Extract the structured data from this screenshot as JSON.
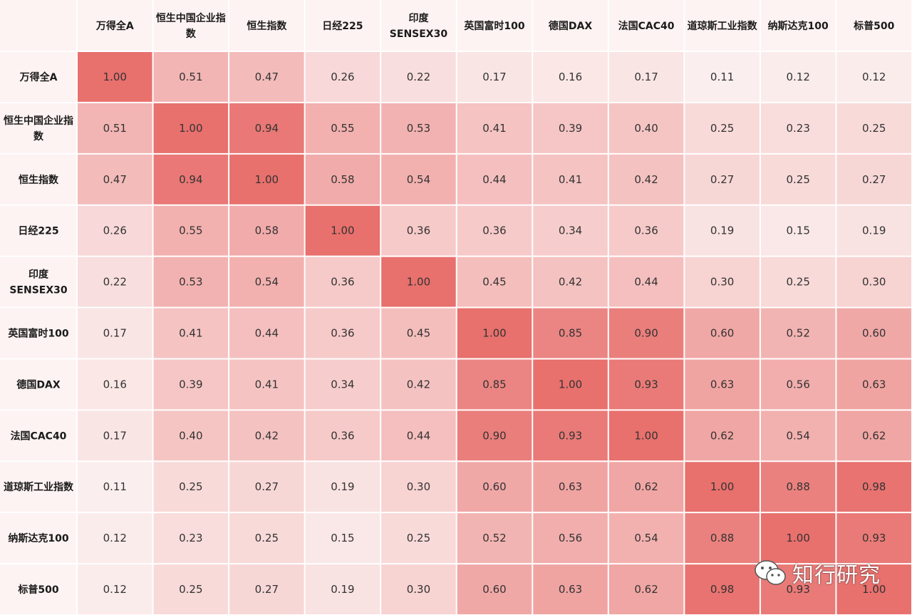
{
  "chart_data": {
    "type": "heatmap",
    "x_labels": [
      "万得全A",
      "恒生中国企业指数",
      "恒生指数",
      "日经225",
      "印度SENSEX30",
      "英国富时100",
      "德国DAX",
      "法国CAC40",
      "道琼斯工业指数",
      "纳斯达克100",
      "标普500"
    ],
    "y_labels": [
      "万得全A",
      "恒生中国企业指数",
      "恒生指数",
      "日经225",
      "印度SENSEX30",
      "英国富时100",
      "德国DAX",
      "法国CAC40",
      "道琼斯工业指数",
      "纳斯达克100",
      "标普500"
    ],
    "values": [
      [
        1.0,
        0.51,
        0.47,
        0.26,
        0.22,
        0.17,
        0.16,
        0.17,
        0.11,
        0.12,
        0.12
      ],
      [
        0.51,
        1.0,
        0.94,
        0.55,
        0.53,
        0.41,
        0.39,
        0.4,
        0.25,
        0.23,
        0.25
      ],
      [
        0.47,
        0.94,
        1.0,
        0.58,
        0.54,
        0.44,
        0.41,
        0.42,
        0.27,
        0.25,
        0.27
      ],
      [
        0.26,
        0.55,
        0.58,
        1.0,
        0.36,
        0.36,
        0.34,
        0.36,
        0.19,
        0.15,
        0.19
      ],
      [
        0.22,
        0.53,
        0.54,
        0.36,
        1.0,
        0.45,
        0.42,
        0.44,
        0.3,
        0.25,
        0.3
      ],
      [
        0.17,
        0.41,
        0.44,
        0.36,
        0.45,
        1.0,
        0.85,
        0.9,
        0.6,
        0.52,
        0.6
      ],
      [
        0.16,
        0.39,
        0.41,
        0.34,
        0.42,
        0.85,
        1.0,
        0.93,
        0.63,
        0.56,
        0.63
      ],
      [
        0.17,
        0.4,
        0.42,
        0.36,
        0.44,
        0.9,
        0.93,
        1.0,
        0.62,
        0.54,
        0.62
      ],
      [
        0.11,
        0.25,
        0.27,
        0.19,
        0.3,
        0.6,
        0.63,
        0.62,
        1.0,
        0.88,
        0.98
      ],
      [
        0.12,
        0.23,
        0.25,
        0.15,
        0.25,
        0.52,
        0.56,
        0.54,
        0.88,
        1.0,
        0.93
      ],
      [
        0.12,
        0.25,
        0.27,
        0.19,
        0.3,
        0.6,
        0.63,
        0.62,
        0.98,
        0.93,
        1.0
      ]
    ],
    "value_format": "0.00",
    "color_low": "#fbefef",
    "color_high": "#e8706d",
    "header_bg": "#fdf3f2"
  },
  "watermark": {
    "text": "知行研究",
    "icon": "wechat-icon"
  }
}
